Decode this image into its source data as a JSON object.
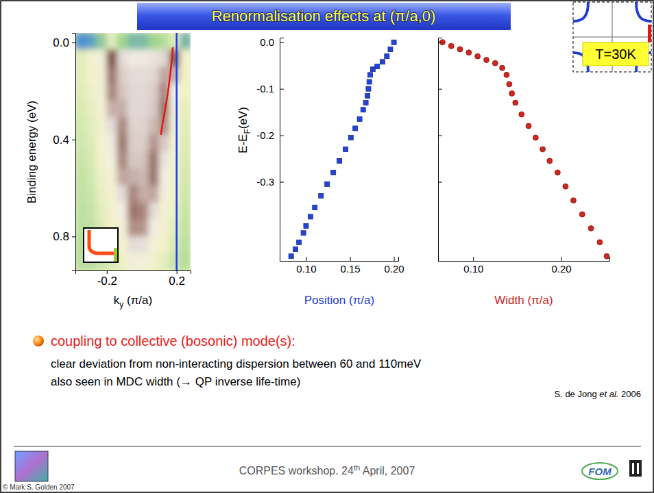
{
  "chart_data": [
    {
      "type": "heatmap",
      "ylabel": "Binding energy (eV)",
      "xlabel": [
        {
          "text": "k"
        },
        {
          "text": "y",
          "format": "sub"
        },
        {
          "text": " (π/a)"
        }
      ],
      "xlim": [
        -0.38,
        0.28
      ],
      "ylim": [
        -0.04,
        0.94
      ],
      "xticks": [
        -0.2,
        0.2
      ],
      "yticks": [
        {
          "value": 0,
          "label": "0.0"
        },
        0.4,
        0.8
      ],
      "zlim": [
        0,
        1
      ],
      "x": [
        -0.35,
        -0.29,
        -0.23,
        -0.17,
        -0.11,
        -0.05,
        0.01,
        0.07,
        0.13,
        0.19,
        0.25
      ],
      "y": [
        -0.005,
        0.065,
        0.135,
        0.205,
        0.275,
        0.345,
        0.415,
        0.485,
        0.555,
        0.625,
        0.695,
        0.765,
        0.835,
        0.905
      ],
      "z": [
        [
          0.2,
          0.22,
          0.28,
          0.42,
          0.3,
          0.26,
          0.26,
          0.3,
          0.34,
          0.42,
          0.25
        ],
        [
          0.42,
          0.46,
          0.55,
          0.95,
          0.7,
          0.62,
          0.62,
          0.66,
          0.72,
          0.95,
          0.5
        ],
        [
          0.42,
          0.45,
          0.55,
          0.88,
          0.74,
          0.7,
          0.7,
          0.72,
          0.82,
          0.8,
          0.48
        ],
        [
          0.41,
          0.44,
          0.53,
          0.86,
          0.76,
          0.72,
          0.72,
          0.74,
          0.86,
          0.6,
          0.45
        ],
        [
          0.4,
          0.43,
          0.5,
          0.8,
          0.8,
          0.72,
          0.72,
          0.75,
          0.88,
          0.55,
          0.43
        ],
        [
          0.39,
          0.42,
          0.48,
          0.7,
          0.86,
          0.73,
          0.73,
          0.78,
          0.85,
          0.52,
          0.42
        ],
        [
          0.38,
          0.41,
          0.46,
          0.62,
          0.88,
          0.74,
          0.74,
          0.84,
          0.75,
          0.5,
          0.41
        ],
        [
          0.37,
          0.4,
          0.45,
          0.58,
          0.86,
          0.75,
          0.76,
          0.88,
          0.66,
          0.48,
          0.4
        ],
        [
          0.36,
          0.39,
          0.44,
          0.54,
          0.82,
          0.8,
          0.78,
          0.88,
          0.6,
          0.46,
          0.39
        ],
        [
          0.36,
          0.38,
          0.43,
          0.5,
          0.7,
          0.86,
          0.8,
          0.82,
          0.55,
          0.45,
          0.38
        ],
        [
          0.35,
          0.37,
          0.42,
          0.47,
          0.6,
          0.88,
          0.86,
          0.7,
          0.52,
          0.44,
          0.37
        ],
        [
          0.35,
          0.36,
          0.41,
          0.45,
          0.54,
          0.85,
          0.84,
          0.6,
          0.48,
          0.42,
          0.36
        ],
        [
          0.34,
          0.36,
          0.4,
          0.43,
          0.48,
          0.7,
          0.68,
          0.52,
          0.45,
          0.4,
          0.35
        ],
        [
          0.34,
          0.35,
          0.38,
          0.41,
          0.44,
          0.55,
          0.54,
          0.47,
          0.42,
          0.38,
          0.34
        ]
      ],
      "series": [
        {
          "type": "line",
          "color": "#e01818",
          "x": [
            0.178,
            0.174,
            0.168,
            0.162,
            0.155,
            0.147,
            0.138,
            0.128,
            0.118,
            0.11
          ],
          "values": [
            0.02,
            0.06,
            0.1,
            0.14,
            0.18,
            0.22,
            0.26,
            0.3,
            0.34,
            0.38
          ]
        },
        {
          "type": "line",
          "color": "#1f3fe0",
          "x": [
            0.2,
            0.2
          ],
          "values": [
            -0.04,
            0.94
          ]
        }
      ]
    },
    {
      "type": "scatter",
      "marker": "square",
      "color": "#2444d8",
      "xlabel": "Position (π/a)",
      "ylabel": [
        {
          "text": "E-E"
        },
        {
          "text": "F",
          "format": "sub"
        },
        {
          "text": "(eV)"
        }
      ],
      "xlim": [
        0.07,
        0.205
      ],
      "ylim": [
        -0.47,
        0.01
      ],
      "xticks": [
        {
          "value": 0.1,
          "label": "0.10"
        },
        0.15,
        {
          "value": 0.2,
          "label": "0.20"
        }
      ],
      "yticks": [
        {
          "value": 0,
          "label": "0.0"
        },
        -0.1,
        -0.2,
        -0.3
      ],
      "x": [
        0.083,
        0.088,
        0.092,
        0.097,
        0.1,
        0.105,
        0.11,
        0.117,
        0.124,
        0.131,
        0.138,
        0.145,
        0.151,
        0.156,
        0.161,
        0.165,
        0.168,
        0.17,
        0.171,
        0.172,
        0.173,
        0.176,
        0.181,
        0.187,
        0.192,
        0.196,
        0.2
      ],
      "values": [
        -0.46,
        -0.445,
        -0.43,
        -0.41,
        -0.395,
        -0.375,
        -0.355,
        -0.33,
        -0.305,
        -0.28,
        -0.255,
        -0.23,
        -0.205,
        -0.185,
        -0.165,
        -0.145,
        -0.13,
        -0.115,
        -0.1,
        -0.085,
        -0.07,
        -0.058,
        -0.052,
        -0.042,
        -0.03,
        -0.015,
        0.0
      ]
    },
    {
      "type": "scatter",
      "marker": "circle",
      "color": "#d0261e",
      "tick_labels": "x",
      "xlabel": "Width (π/a)",
      "xlim": [
        0.06,
        0.255
      ],
      "ylim": [
        -0.47,
        0.01
      ],
      "xticks": [
        {
          "value": 0.1,
          "label": "0.10"
        },
        {
          "value": 0.2,
          "label": "0.20"
        }
      ],
      "yticks": [
        0,
        -0.1,
        -0.2,
        -0.3
      ],
      "x": [
        0.065,
        0.075,
        0.085,
        0.095,
        0.105,
        0.115,
        0.125,
        0.133,
        0.138,
        0.141,
        0.144,
        0.148,
        0.155,
        0.163,
        0.171,
        0.179,
        0.187,
        0.196,
        0.205,
        0.214,
        0.224,
        0.234,
        0.244,
        0.252
      ],
      "values": [
        0.0,
        -0.008,
        -0.015,
        -0.022,
        -0.03,
        -0.038,
        -0.045,
        -0.055,
        -0.07,
        -0.09,
        -0.11,
        -0.13,
        -0.155,
        -0.18,
        -0.205,
        -0.23,
        -0.255,
        -0.28,
        -0.31,
        -0.34,
        -0.37,
        -0.4,
        -0.43,
        -0.46
      ]
    }
  ],
  "slide": {
    "title": "Renormalisation effects at (π/a,0)",
    "temperature": "T=30K",
    "bullet": "coupling to collective (bosonic) mode(s):",
    "lines": [
      "clear deviation from non-interacting dispersion between 60 and 110meV",
      "also seen in MDC width (→ QP inverse life-time)"
    ],
    "citation": [
      {
        "text": "S. de Jong "
      },
      {
        "text": "et al.",
        "format": "italic"
      },
      {
        "text": " 2006"
      }
    ],
    "footer": [
      {
        "text": "CORPES workshop. 24"
      },
      {
        "text": "th",
        "format": "sup"
      },
      {
        "text": " April, 2007"
      }
    ],
    "copyright": "© Mark S. Golden 2007",
    "logo": "FOM"
  }
}
